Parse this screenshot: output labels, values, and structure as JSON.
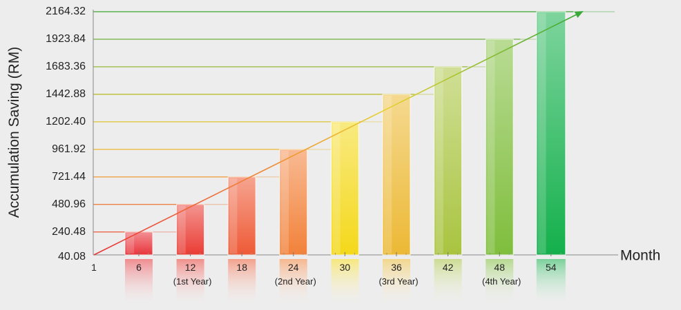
{
  "chart_data": {
    "type": "bar",
    "title": "",
    "ylabel": "Accumulation Saving (RM)",
    "xlabel": "Month",
    "x_axis_start": "1",
    "categories": [
      "6",
      "12",
      "18",
      "24",
      "30",
      "36",
      "42",
      "48",
      "54"
    ],
    "category_sublabels": [
      "",
      "(1st Year)",
      "",
      "(2nd Year)",
      "",
      "(3rd Year)",
      "",
      "(4th Year)",
      ""
    ],
    "values": [
      240.48,
      480.96,
      721.44,
      961.92,
      1202.4,
      1442.88,
      1683.36,
      1923.84,
      2164.32
    ],
    "y_ticks": [
      "40.08",
      "240.48",
      "480.96",
      "721.44",
      "961.92",
      "1202.40",
      "1442.88",
      "1683.36",
      "1923.84",
      "2164.32"
    ],
    "ylim": [
      40.08,
      2164.32
    ],
    "grid": true,
    "trend_arrow": true,
    "colors": [
      "#e8343a",
      "#ea3c34",
      "#ee5a36",
      "#f2823a",
      "#f4d81a",
      "#ecb935",
      "#a9c440",
      "#7fbe3c",
      "#14b04c"
    ]
  }
}
